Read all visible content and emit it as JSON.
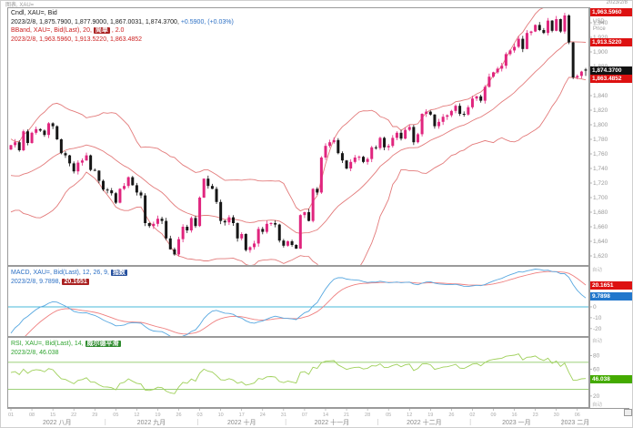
{
  "header": {
    "left": "图表, XAU=",
    "right": "2023/2/8"
  },
  "legend_price": {
    "l1": "Cndl, XAU=, Bid",
    "l2_black": "2023/2/8, 1,875.7900, 1,877.9000, 1,867.0031, 1,874.3700,",
    "l2_blue": "+0.5900, (+0.03%)",
    "l3_pre": "BBand, XAU=, Bid(Last), 20,",
    "l3_hl": "简单",
    "l3_post": ", 2.0",
    "l4": "2023/2/8, 1,963.5960, 1,913.5220, 1,863.4852"
  },
  "legend_macd": {
    "l1_pre": "MACD, XAU=, Bid(Last), 12, 26, 9,",
    "l1_hl": "指数",
    "l2_pre": "2023/2/8, 9.7898,",
    "l2_hl": "20.1651"
  },
  "legend_rsi": {
    "l1_pre": "RSI, XAU=, Bid(Last), 14,",
    "l1_hl": "威尔德平滑",
    "l2": "2023/2/8, 46.038"
  },
  "price_axis": {
    "unit": "USD",
    "unit2": "Price",
    "box_bb_upper": "1,963.5960",
    "box_bb_mid": "1,913.5220",
    "box_last": "1,874.3700",
    "box_bb_lower": "1,863.4852",
    "ticks": [
      "1,940",
      "1,920",
      "1,900",
      "1,880",
      "1,860",
      "1,840",
      "1,820",
      "1,800",
      "1,780",
      "1,760",
      "1,740",
      "1,720",
      "1,700",
      "1,680",
      "1,660",
      "1,640",
      "1,620",
      "1,600"
    ]
  },
  "macd_axis": {
    "box_signal": "20.1651",
    "box_macd": "9.7898",
    "ticks": [
      "0",
      "-10",
      "-20"
    ],
    "auto": "自动"
  },
  "rsi_axis": {
    "box": "46.038",
    "ticks": [
      "80",
      "60",
      "20"
    ],
    "auto": "自动"
  },
  "colors": {
    "up": "#e0257e",
    "down": "#161616",
    "bband": "#e37b7b",
    "macd_line": "#58a8e0",
    "macd_signal": "#ef8080",
    "macd_zero": "#4ab8d8",
    "rsi_line": "#9fd05a",
    "rsi_levels": "#7cc24e",
    "red_box": "#dd1111",
    "black_box": "#111111",
    "blue_box": "#2277cc",
    "green_box": "#44aa00",
    "hl_red_bg": "#aa2222",
    "hl_blue_bg": "#27519e",
    "hl_green_bg": "#2e8b2e",
    "tick_text": "#999999",
    "border": "#9a9a9a"
  },
  "chart_data": {
    "type": "candlestick",
    "symbol": "XAU=",
    "quote_side": "Bid",
    "interval": "daily",
    "start_date": "2022-08-01",
    "warmup_closes": [
      1848,
      1839,
      1832,
      1820,
      1827,
      1837,
      1826,
      1822,
      1830,
      1817,
      1810,
      1807,
      1790,
      1765,
      1740,
      1742,
      1739,
      1735,
      1728,
      1710,
      1706,
      1712,
      1710,
      1700,
      1698,
      1712,
      1718,
      1722,
      1724,
      1719,
      1766
    ],
    "closes": [
      1772,
      1776,
      1765,
      1791,
      1775,
      1789,
      1794,
      1792,
      1786,
      1802,
      1798,
      1780,
      1761,
      1758,
      1747,
      1736,
      1748,
      1751,
      1758,
      1738,
      1737,
      1723,
      1711,
      1710,
      1706,
      1693,
      1712,
      1716,
      1728,
      1717,
      1707,
      1703,
      1665,
      1661,
      1664,
      1671,
      1668,
      1644,
      1629,
      1622,
      1643,
      1660,
      1655,
      1672,
      1661,
      1700,
      1726,
      1716,
      1712,
      1694,
      1668,
      1666,
      1673,
      1665,
      1644,
      1650,
      1628,
      1632,
      1637,
      1657,
      1653,
      1664,
      1665,
      1663,
      1641,
      1634,
      1640,
      1635,
      1630,
      1676,
      1680,
      1668,
      1712,
      1707,
      1755,
      1771,
      1776,
      1779,
      1761,
      1751,
      1740,
      1749,
      1755,
      1756,
      1749,
      1753,
      1769,
      1768,
      1782,
      1769,
      1771,
      1782,
      1789,
      1781,
      1793,
      1797,
      1776,
      1787,
      1815,
      1818,
      1814,
      1798,
      1804,
      1811,
      1813,
      1819,
      1826,
      1815,
      1814,
      1824,
      1836,
      1839,
      1833,
      1852,
      1866,
      1872,
      1877,
      1881,
      1897,
      1902,
      1907,
      1918,
      1904,
      1926,
      1928,
      1937,
      1930,
      1926,
      1943,
      1929,
      1945,
      1928,
      1950,
      1913,
      1865,
      1867,
      1873,
      1874.37
    ],
    "last_candle": {
      "date": "2023/2/8",
      "open": 1875.79,
      "high": 1877.9,
      "low": 1867.0031,
      "close": 1874.37,
      "change": "+0.5900",
      "change_pct": "+0.03%"
    },
    "bollinger": {
      "period": 20,
      "ma_type": "简单",
      "stdev": 2.0,
      "last_upper": 1963.596,
      "last_middle": 1913.522,
      "last_lower": 1863.4852
    },
    "macd": {
      "fast": 12,
      "slow": 26,
      "signal": 9,
      "ma_type": "指数",
      "last_macd": 9.7898,
      "last_signal": 20.1651,
      "ylim": [
        -26,
        36
      ]
    },
    "rsi": {
      "period": 14,
      "smoothing": "威尔德平滑",
      "last": 46.038,
      "levels": [
        70,
        30
      ],
      "ylim": [
        5,
        105
      ]
    },
    "x_months": [
      "2022 八月",
      "2022 九月",
      "2022 十月",
      "2022 十一月",
      "2022 十二月",
      "2023 一月",
      "2023 二月"
    ],
    "price_ylim": [
      1606,
      1961
    ]
  }
}
